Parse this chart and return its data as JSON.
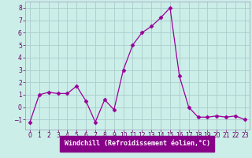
{
  "x": [
    0,
    1,
    2,
    3,
    4,
    5,
    6,
    7,
    8,
    9,
    10,
    11,
    12,
    13,
    14,
    15,
    16,
    17,
    18,
    19,
    20,
    21,
    22,
    23
  ],
  "y": [
    -1.2,
    1.0,
    1.2,
    1.1,
    1.1,
    1.7,
    0.5,
    -1.2,
    0.6,
    -0.2,
    3.0,
    5.0,
    6.0,
    6.5,
    7.2,
    8.0,
    2.5,
    0.0,
    -0.8,
    -0.8,
    -0.7,
    -0.8,
    -0.7,
    -1.0
  ],
  "line_color": "#990099",
  "marker": "D",
  "marker_size": 2.5,
  "bg_color": "#cceee8",
  "grid_color": "#aacccc",
  "xlabel": "Windchill (Refroidissement éolien,°C)",
  "ylim": [
    -1.8,
    8.5
  ],
  "yticks": [
    -1,
    0,
    1,
    2,
    3,
    4,
    5,
    6,
    7,
    8
  ],
  "xticks": [
    0,
    1,
    2,
    3,
    4,
    5,
    6,
    7,
    8,
    9,
    10,
    11,
    12,
    13,
    14,
    15,
    16,
    17,
    18,
    19,
    20,
    21,
    22,
    23
  ],
  "xlabel_color": "white",
  "xlabel_bg": "#880088",
  "axis_label_fontsize": 6.0,
  "tick_fontsize": 5.5,
  "tick_color": "#660066",
  "spine_color": "#9999bb"
}
